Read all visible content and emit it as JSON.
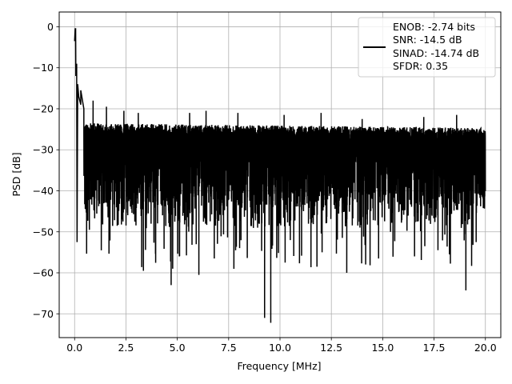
{
  "chart_data": {
    "type": "line",
    "title": "",
    "xlabel": "Frequency [MHz]",
    "ylabel": "PSD [dB]",
    "xlim": [
      -0.75,
      20.75
    ],
    "ylim": [
      -75.8,
      3.6
    ],
    "grid": true,
    "legend_placement": "top-right",
    "x_ticks": [
      0.0,
      2.5,
      5.0,
      7.5,
      10.0,
      12.5,
      15.0,
      17.5,
      20.0
    ],
    "x_tick_labels": [
      "0.0",
      "2.5",
      "5.0",
      "7.5",
      "10.0",
      "12.5",
      "15.0",
      "17.5",
      "20.0"
    ],
    "y_ticks": [
      0,
      -10,
      -20,
      -30,
      -40,
      -50,
      -60,
      -70
    ],
    "y_tick_labels": [
      "0",
      "−10",
      "−20",
      "−30",
      "−40",
      "−50",
      "−60",
      "−70"
    ],
    "legend_lines": [
      "ENOB: -2.74 bits",
      "SNR: -14.5 dB",
      "SINAD: -14.74 dB",
      "SFDR: 0.35"
    ],
    "series": [
      {
        "color": "#000000",
        "x_range": [
          0,
          20
        ],
        "noise_band": {
          "upper_envelope": -23,
          "lower_envelope": -44,
          "deep_nulls_to": -55
        },
        "dc_peak": [
          [
            0.0,
            -3.5
          ],
          [
            0.03,
            -0.5
          ],
          [
            0.06,
            -12
          ],
          [
            0.1,
            -9
          ],
          [
            0.15,
            -14
          ],
          [
            0.2,
            -17
          ],
          [
            0.3,
            -19
          ],
          [
            0.45,
            -20
          ]
        ],
        "peaks": [
          [
            0.05,
            -0.5
          ],
          [
            0.3,
            -15.5
          ],
          [
            0.9,
            -18
          ],
          [
            1.55,
            -19.5
          ],
          [
            2.4,
            -20.5
          ],
          [
            3.1,
            -21
          ],
          [
            5.6,
            -21
          ],
          [
            6.4,
            -20.5
          ],
          [
            7.95,
            -21
          ],
          [
            10.2,
            -21.5
          ],
          [
            12.0,
            -21
          ],
          [
            14.0,
            -22.5
          ],
          [
            17.0,
            -22
          ],
          [
            18.6,
            -21.5
          ]
        ],
        "dips": [
          [
            0.12,
            -52.5
          ],
          [
            0.72,
            -49.5
          ],
          [
            1.3,
            -54.5
          ],
          [
            3.35,
            -59.5
          ],
          [
            4.7,
            -63
          ],
          [
            5.1,
            -56
          ],
          [
            6.05,
            -60.5
          ],
          [
            6.8,
            -56.5
          ],
          [
            9.25,
            -71
          ],
          [
            9.55,
            -72.2
          ],
          [
            10.25,
            -57.5
          ],
          [
            11.8,
            -58.5
          ],
          [
            12.05,
            -55
          ],
          [
            13.25,
            -60
          ],
          [
            14.8,
            -56.5
          ],
          [
            16.55,
            -56
          ],
          [
            17.05,
            -53.5
          ],
          [
            18.25,
            -55.5
          ],
          [
            19.05,
            -64.3
          ],
          [
            19.55,
            -52.5
          ]
        ]
      }
    ]
  }
}
